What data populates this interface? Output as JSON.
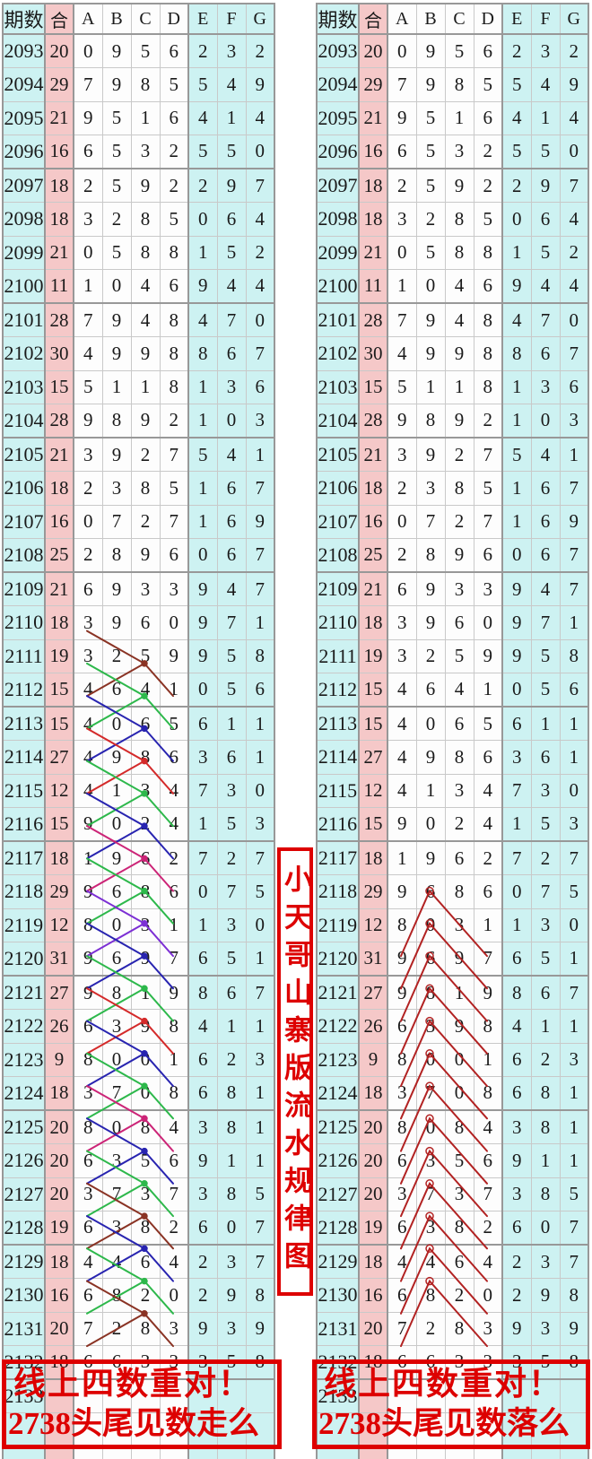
{
  "colors": {
    "cyan_cell": "#cdf2f2",
    "pink_cell": "#f5c8c8",
    "white_cell": "#fdfdfd",
    "grid_light": "#c9c9c9",
    "grid_dark": "#989898",
    "red_accent": "#dd0000",
    "line_brown": "#8a3324",
    "line_green": "#2db84b",
    "line_blue": "#2824b0",
    "line_red": "#d42a2a",
    "line_magenta": "#cc2477",
    "line_purple": "#7c2fd4",
    "line_rightred": "#b22222"
  },
  "middle_banner": {
    "text": "小天哥山寨版流水规律图"
  },
  "left_caption": {
    "line1": "线上四数重对！",
    "line2": "2738头尾见数走么"
  },
  "right_caption": {
    "line1": "线上四数重对！",
    "line2": "2738头尾见数落么"
  },
  "chart_data": {
    "type": "table",
    "title": "小天哥山寨版流水规律图",
    "description": "Two identical lottery number trend tables. Left table: colored zigzag lines A(r-1)->C(r)->D(r+1) plus A(r+1)->C(r). Right table: dark-red peak lines A(r+2)->B(r)->D(r+2).",
    "columns": [
      "期数",
      "合",
      "A",
      "B",
      "C",
      "D",
      "E",
      "F",
      "G"
    ],
    "rows": [
      [
        "2093",
        "20",
        "0",
        "9",
        "5",
        "6",
        "2",
        "3",
        "2"
      ],
      [
        "2094",
        "29",
        "7",
        "9",
        "8",
        "5",
        "5",
        "4",
        "9"
      ],
      [
        "2095",
        "21",
        "9",
        "5",
        "1",
        "6",
        "4",
        "1",
        "4"
      ],
      [
        "2096",
        "16",
        "6",
        "5",
        "3",
        "2",
        "5",
        "5",
        "0"
      ],
      [
        "2097",
        "18",
        "2",
        "5",
        "9",
        "2",
        "2",
        "9",
        "7"
      ],
      [
        "2098",
        "18",
        "3",
        "2",
        "8",
        "5",
        "0",
        "6",
        "4"
      ],
      [
        "2099",
        "21",
        "0",
        "5",
        "8",
        "8",
        "1",
        "5",
        "2"
      ],
      [
        "2100",
        "11",
        "1",
        "0",
        "4",
        "6",
        "9",
        "4",
        "4"
      ],
      [
        "2101",
        "28",
        "7",
        "9",
        "4",
        "8",
        "4",
        "7",
        "0"
      ],
      [
        "2102",
        "30",
        "4",
        "9",
        "9",
        "8",
        "8",
        "6",
        "7"
      ],
      [
        "2103",
        "15",
        "5",
        "1",
        "1",
        "8",
        "1",
        "3",
        "6"
      ],
      [
        "2104",
        "28",
        "9",
        "8",
        "9",
        "2",
        "1",
        "0",
        "3"
      ],
      [
        "2105",
        "21",
        "3",
        "9",
        "2",
        "7",
        "5",
        "4",
        "1"
      ],
      [
        "2106",
        "18",
        "2",
        "3",
        "8",
        "5",
        "1",
        "6",
        "7"
      ],
      [
        "2107",
        "16",
        "0",
        "7",
        "2",
        "7",
        "1",
        "6",
        "9"
      ],
      [
        "2108",
        "25",
        "2",
        "8",
        "9",
        "6",
        "0",
        "6",
        "7"
      ],
      [
        "2109",
        "21",
        "6",
        "9",
        "3",
        "3",
        "9",
        "4",
        "7"
      ],
      [
        "2110",
        "18",
        "3",
        "9",
        "6",
        "0",
        "9",
        "7",
        "1"
      ],
      [
        "2111",
        "19",
        "3",
        "2",
        "5",
        "9",
        "9",
        "5",
        "8"
      ],
      [
        "2112",
        "15",
        "4",
        "6",
        "4",
        "1",
        "0",
        "5",
        "6"
      ],
      [
        "2113",
        "15",
        "4",
        "0",
        "6",
        "5",
        "6",
        "1",
        "1"
      ],
      [
        "2114",
        "27",
        "4",
        "9",
        "8",
        "6",
        "3",
        "6",
        "1"
      ],
      [
        "2115",
        "12",
        "4",
        "1",
        "3",
        "4",
        "7",
        "3",
        "0"
      ],
      [
        "2116",
        "15",
        "9",
        "0",
        "2",
        "4",
        "1",
        "5",
        "3"
      ],
      [
        "2117",
        "18",
        "1",
        "9",
        "6",
        "2",
        "7",
        "2",
        "7"
      ],
      [
        "2118",
        "29",
        "9",
        "6",
        "8",
        "6",
        "0",
        "7",
        "5"
      ],
      [
        "2119",
        "12",
        "8",
        "0",
        "3",
        "1",
        "1",
        "3",
        "0"
      ],
      [
        "2120",
        "31",
        "9",
        "6",
        "9",
        "7",
        "6",
        "5",
        "1"
      ],
      [
        "2121",
        "27",
        "9",
        "8",
        "1",
        "9",
        "8",
        "6",
        "7"
      ],
      [
        "2122",
        "26",
        "6",
        "3",
        "9",
        "8",
        "4",
        "1",
        "1"
      ],
      [
        "2123",
        "9",
        "8",
        "0",
        "0",
        "1",
        "6",
        "2",
        "3"
      ],
      [
        "2124",
        "18",
        "3",
        "7",
        "0",
        "8",
        "6",
        "8",
        "1"
      ],
      [
        "2125",
        "20",
        "8",
        "0",
        "8",
        "4",
        "3",
        "8",
        "1"
      ],
      [
        "2126",
        "20",
        "6",
        "3",
        "5",
        "6",
        "9",
        "1",
        "1"
      ],
      [
        "2127",
        "20",
        "3",
        "7",
        "3",
        "7",
        "3",
        "8",
        "5"
      ],
      [
        "2128",
        "19",
        "6",
        "3",
        "8",
        "2",
        "6",
        "0",
        "7"
      ],
      [
        "2129",
        "18",
        "4",
        "4",
        "6",
        "4",
        "2",
        "3",
        "7"
      ],
      [
        "2130",
        "16",
        "6",
        "8",
        "2",
        "0",
        "2",
        "9",
        "8"
      ],
      [
        "2131",
        "20",
        "7",
        "2",
        "8",
        "3",
        "9",
        "3",
        "9"
      ],
      [
        "2132",
        "18",
        "6",
        "6",
        "3",
        "3",
        "3",
        "5",
        "8"
      ],
      [
        "2133",
        "",
        "",
        "",
        "",
        "",
        "",
        "",
        ""
      ]
    ],
    "left_line_units": [
      {
        "apex": 2112,
        "color": "line_brown"
      },
      {
        "apex": 2113,
        "color": "line_green"
      },
      {
        "apex": 2114,
        "color": "line_blue"
      },
      {
        "apex": 2115,
        "color": "line_red"
      },
      {
        "apex": 2116,
        "color": "line_green"
      },
      {
        "apex": 2117,
        "color": "line_blue"
      },
      {
        "apex": 2118,
        "color": "line_magenta"
      },
      {
        "apex": 2119,
        "color": "line_green"
      },
      {
        "apex": 2120,
        "color": "line_purple"
      },
      {
        "apex": 2121,
        "color": "line_blue"
      },
      {
        "apex": 2122,
        "color": "line_green"
      },
      {
        "apex": 2123,
        "color": "line_red"
      },
      {
        "apex": 2124,
        "color": "line_blue"
      },
      {
        "apex": 2125,
        "color": "line_green"
      },
      {
        "apex": 2126,
        "color": "line_magenta"
      },
      {
        "apex": 2127,
        "color": "line_blue"
      },
      {
        "apex": 2128,
        "color": "line_green"
      },
      {
        "apex": 2129,
        "color": "line_brown"
      },
      {
        "apex": 2130,
        "color": "line_blue"
      },
      {
        "apex": 2131,
        "color": "line_green"
      },
      {
        "apex": 2132,
        "color": "line_brown"
      }
    ],
    "right_line_units": {
      "apexes": [
        2119,
        2120,
        2121,
        2122,
        2123,
        2124,
        2125,
        2126,
        2127,
        2128,
        2129,
        2130,
        2131
      ],
      "color": "line_rightred"
    }
  }
}
